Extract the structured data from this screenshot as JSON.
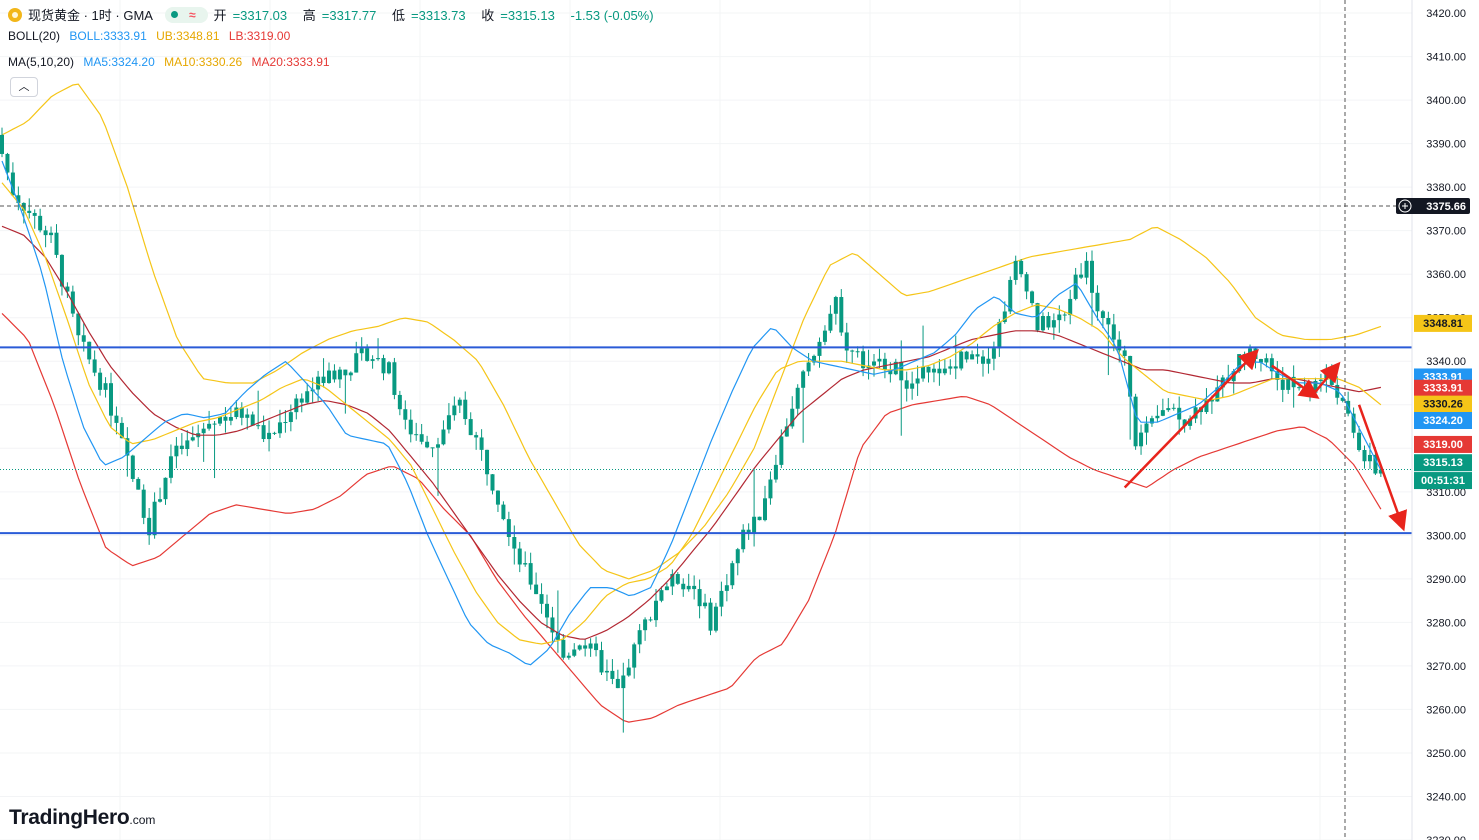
{
  "header": {
    "symbol": "现货黄金 · 1时 · GMA",
    "open_label": "开",
    "open": "=3317.03",
    "high_label": "高",
    "high": "=3317.77",
    "low_label": "低",
    "low": "=3313.73",
    "close_label": "收",
    "close": "=3315.13",
    "change": "-1.53 (-0.05%)"
  },
  "indicators": {
    "boll_label": "BOLL(20)",
    "boll_mid": "BOLL:3333.91",
    "boll_ub": "UB:3348.81",
    "boll_lb": "LB:3319.00",
    "ma_label": "MA(5,10,20)",
    "ma5": "MA5:3324.20",
    "ma10": "MA10:3330.26",
    "ma20": "MA20:3333.91"
  },
  "collapse_icon": "chevron-up-icon",
  "brand": {
    "name": "TradingHero",
    "suffix": ".com"
  },
  "colors": {
    "up": "#089981",
    "down": "#089981",
    "ma5": "#2196f3",
    "ma10": "#f5c518",
    "ma20": "#b22833",
    "boll_mid": "#b22833",
    "boll_ub": "#f5c518",
    "boll_lb": "#e53935",
    "hline": "#2a5bd7",
    "arrow": "#e8241c",
    "grid": "#f3f4f6",
    "text": "#131722"
  },
  "chart_data": {
    "type": "candlestick",
    "timeframe": "1时",
    "ylim": [
      3230,
      3423
    ],
    "y_ticks": [
      "3420.00",
      "3410.00",
      "3400.00",
      "3390.00",
      "3380.00",
      "3370.00",
      "3360.00",
      "3350.00",
      "3340.00",
      "3330.00",
      "3320.00",
      "3310.00",
      "3300.00",
      "3290.00",
      "3280.00",
      "3270.00",
      "3260.00",
      "3250.00",
      "3240.00",
      "3230.00"
    ],
    "y_tick_values": [
      3420,
      3410,
      3400,
      3390,
      3380,
      3370,
      3360,
      3350,
      3340,
      3330,
      3320,
      3310,
      3300,
      3290,
      3280,
      3270,
      3260,
      3250,
      3240,
      3230
    ],
    "horizontal_lines": [
      3343.2,
      3300.5
    ],
    "crosshair_price": 3375.66,
    "crosshair_label": "3375.66",
    "price_badges": [
      {
        "label": "3348.81",
        "value": 3348.81,
        "bg": "#f5c518",
        "fg": "#131722"
      },
      {
        "label": "3333.91",
        "value": 3336.5,
        "bg": "#2196f3",
        "fg": "#ffffff"
      },
      {
        "label": "3333.91",
        "value": 3333.91,
        "bg": "#e53935",
        "fg": "#ffffff"
      },
      {
        "label": "3330.26",
        "value": 3330.26,
        "bg": "#f5c518",
        "fg": "#131722"
      },
      {
        "label": "3324.20",
        "value": 3326.5,
        "bg": "#2196f3",
        "fg": "#ffffff"
      },
      {
        "label": "3319.00",
        "value": 3321.0,
        "bg": "#e53935",
        "fg": "#ffffff"
      },
      {
        "label": "3315.13",
        "value": 3316.8,
        "bg": "#089981",
        "fg": "#ffffff"
      },
      {
        "label": "00:51:31",
        "value": 3312.7,
        "bg": "#089981",
        "fg": "#ffffff"
      }
    ],
    "current_price": 3315.13,
    "anchors": [
      [
        0,
        3392
      ],
      [
        3,
        3379
      ],
      [
        10,
        3368
      ],
      [
        15,
        3345
      ],
      [
        20,
        3333
      ],
      [
        25,
        3313
      ],
      [
        28,
        3302
      ],
      [
        32,
        3318
      ],
      [
        36,
        3322
      ],
      [
        40,
        3327
      ],
      [
        45,
        3328
      ],
      [
        50,
        3322
      ],
      [
        55,
        3331
      ],
      [
        60,
        3336
      ],
      [
        65,
        3339
      ],
      [
        68,
        3342
      ],
      [
        72,
        3338
      ],
      [
        75,
        3325
      ],
      [
        80,
        3321
      ],
      [
        85,
        3330
      ],
      [
        88,
        3322
      ],
      [
        92,
        3309
      ],
      [
        96,
        3294
      ],
      [
        100,
        3285
      ],
      [
        104,
        3272
      ],
      [
        107,
        3276
      ],
      [
        110,
        3272
      ],
      [
        114,
        3264
      ],
      [
        118,
        3277
      ],
      [
        122,
        3288
      ],
      [
        125,
        3290
      ],
      [
        128,
        3288
      ],
      [
        131,
        3280
      ],
      [
        134,
        3290
      ],
      [
        137,
        3300
      ],
      [
        140,
        3305
      ],
      [
        143,
        3318
      ],
      [
        146,
        3330
      ],
      [
        149,
        3339
      ],
      [
        152,
        3349
      ],
      [
        154,
        3353
      ],
      [
        156,
        3344
      ],
      [
        158,
        3341
      ],
      [
        160,
        3338
      ],
      [
        163,
        3340
      ],
      [
        166,
        3337
      ],
      [
        168,
        3334
      ],
      [
        171,
        3339
      ],
      [
        173,
        3336
      ],
      [
        176,
        3340
      ],
      [
        179,
        3343
      ],
      [
        181,
        3341
      ],
      [
        183,
        3344
      ],
      [
        185,
        3353
      ],
      [
        187,
        3362
      ],
      [
        189,
        3358
      ],
      [
        191,
        3348
      ],
      [
        193,
        3349
      ],
      [
        196,
        3350
      ],
      [
        198,
        3360
      ],
      [
        200,
        3362
      ],
      [
        202,
        3352
      ],
      [
        204,
        3348
      ],
      [
        207,
        3340
      ],
      [
        209,
        3322
      ],
      [
        212,
        3325
      ],
      [
        215,
        3330
      ],
      [
        218,
        3327
      ],
      [
        221,
        3330
      ],
      [
        224,
        3333
      ],
      [
        227,
        3339
      ],
      [
        230,
        3342
      ],
      [
        233,
        3340
      ],
      [
        235,
        3336
      ],
      [
        238,
        3334
      ],
      [
        241,
        3334
      ],
      [
        244,
        3337
      ],
      [
        246,
        3333
      ],
      [
        249,
        3323
      ],
      [
        251,
        3318
      ],
      [
        253,
        3315
      ]
    ],
    "ma5": [
      3386,
      3374,
      3360,
      3340,
      3325,
      3316,
      3318,
      3322,
      3326,
      3328,
      3327,
      3328,
      3333,
      3337,
      3340,
      3335,
      3330,
      3323,
      3322,
      3321,
      3312,
      3300,
      3290,
      3280,
      3275,
      3273,
      3270,
      3274,
      3282,
      3288,
      3288,
      3286,
      3288,
      3298,
      3310,
      3322,
      3333,
      3343,
      3348,
      3343,
      3340,
      3339,
      3338,
      3337,
      3338,
      3340,
      3342,
      3346,
      3352,
      3355,
      3351,
      3350,
      3355,
      3358,
      3350,
      3343,
      3326,
      3326,
      3328,
      3330,
      3334,
      3339,
      3340,
      3337,
      3335,
      3335,
      3333,
      3324,
      3315
    ],
    "ma10": [
      3381,
      3375,
      3364,
      3350,
      3335,
      3325,
      3321,
      3322,
      3324,
      3326,
      3327,
      3329,
      3331,
      3334,
      3336,
      3334,
      3330,
      3326,
      3322,
      3316,
      3306,
      3296,
      3287,
      3280,
      3276,
      3275,
      3276,
      3280,
      3286,
      3289,
      3290,
      3293,
      3300,
      3310,
      3320,
      3330,
      3338,
      3340,
      3340,
      3340,
      3339,
      3338,
      3338,
      3339,
      3341,
      3344,
      3348,
      3351,
      3353,
      3352,
      3350,
      3347,
      3341,
      3337,
      3333,
      3332,
      3331,
      3332,
      3334,
      3336,
      3336,
      3336,
      3336,
      3334,
      3330
    ],
    "ma20": [
      3371,
      3369,
      3364,
      3356,
      3347,
      3339,
      3333,
      3328,
      3325,
      3323,
      3323,
      3324,
      3326,
      3328,
      3330,
      3331,
      3330,
      3328,
      3324,
      3318,
      3312,
      3305,
      3298,
      3291,
      3285,
      3280,
      3277,
      3276,
      3278,
      3281,
      3285,
      3290,
      3296,
      3302,
      3309,
      3316,
      3322,
      3328,
      3332,
      3336,
      3338,
      3339,
      3340,
      3341,
      3343,
      3345,
      3346,
      3347,
      3347,
      3346,
      3344,
      3342,
      3340,
      3338,
      3338,
      3337,
      3336,
      3335,
      3335,
      3336,
      3336,
      3335,
      3334,
      3333,
      3334
    ],
    "boll_ub": [
      3392,
      3395,
      3401,
      3404,
      3396,
      3380,
      3361,
      3345,
      3336,
      3335,
      3335,
      3338,
      3342,
      3345,
      3347,
      3348,
      3350,
      3349,
      3345,
      3340,
      3330,
      3318,
      3308,
      3298,
      3292,
      3290,
      3292,
      3296,
      3302,
      3310,
      3320,
      3335,
      3350,
      3362,
      3365,
      3360,
      3355,
      3356,
      3358,
      3360,
      3362,
      3364,
      3365,
      3366,
      3367,
      3368,
      3371,
      3368,
      3364,
      3358,
      3350,
      3346,
      3345,
      3345,
      3346,
      3348
    ],
    "boll_lb": [
      3351,
      3345,
      3330,
      3312,
      3297,
      3293,
      3295,
      3300,
      3305,
      3307,
      3306,
      3305,
      3306,
      3309,
      3314,
      3316,
      3313,
      3306,
      3300,
      3290,
      3282,
      3275,
      3268,
      3261,
      3257,
      3258,
      3261,
      3263,
      3265,
      3272,
      3275,
      3285,
      3300,
      3320,
      3328,
      3330,
      3331,
      3332,
      3330,
      3326,
      3322,
      3318,
      3315,
      3313,
      3311,
      3315,
      3318,
      3320,
      3322,
      3324,
      3325,
      3322,
      3316,
      3306
    ],
    "annotations": [
      {
        "type": "arrow",
        "from": [
          206,
          3311
        ],
        "to": [
          230,
          3342
        ]
      },
      {
        "type": "arrow",
        "from": [
          233,
          3339
        ],
        "to": [
          241,
          3332
        ]
      },
      {
        "type": "arrow",
        "from": [
          241,
          3333
        ],
        "to": [
          245,
          3339
        ]
      },
      {
        "type": "arrow",
        "from": [
          249,
          3330
        ],
        "to": [
          257,
          3302
        ]
      }
    ]
  }
}
